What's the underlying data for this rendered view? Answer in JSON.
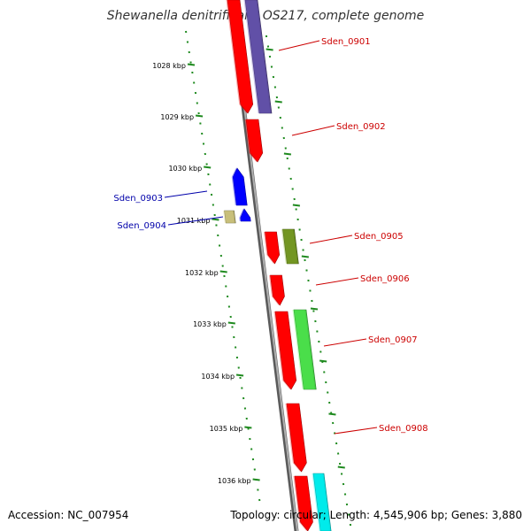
{
  "title": "Shewanella denitrificans OS217, complete genome",
  "footer": {
    "accession": "Accession: NC_007954",
    "summary": "Topology: circular; Length: 4,545,906 bp; Genes: 3,880"
  },
  "colors": {
    "backbone": "#888888",
    "ticks": "#1f8a1f",
    "gene_label_forward": "#cc0000",
    "gene_label_reverse": "#0000aa"
  },
  "scale_labels": [
    "1028 kbp",
    "1029 kbp",
    "1030 kbp",
    "1031 kbp",
    "1032 kbp",
    "1033 kbp",
    "1034 kbp",
    "1035 kbp",
    "1036 kbp"
  ],
  "genes": [
    {
      "name": "Sden_0901",
      "color": "#ff0000"
    },
    {
      "name": "Sden_0902",
      "color": "#ff0000"
    },
    {
      "name": "Sden_0903",
      "color": "#0000ff"
    },
    {
      "name": "Sden_0904",
      "color": "#0000ff"
    },
    {
      "name": "Sden_0905",
      "color": "#ff0000"
    },
    {
      "name": "Sden_0906",
      "color": "#ff0000"
    },
    {
      "name": "Sden_0907",
      "color": "#ff0000"
    },
    {
      "name": "Sden_0908",
      "color": "#ff0000"
    }
  ],
  "features": [
    {
      "track": "purple",
      "color": "#5a4a9a"
    },
    {
      "track": "olive-small",
      "color": "#b8b070"
    },
    {
      "track": "olive",
      "color": "#6a8a20"
    },
    {
      "track": "green",
      "color": "#44cc44"
    },
    {
      "track": "cyan",
      "color": "#00e0e0"
    }
  ]
}
